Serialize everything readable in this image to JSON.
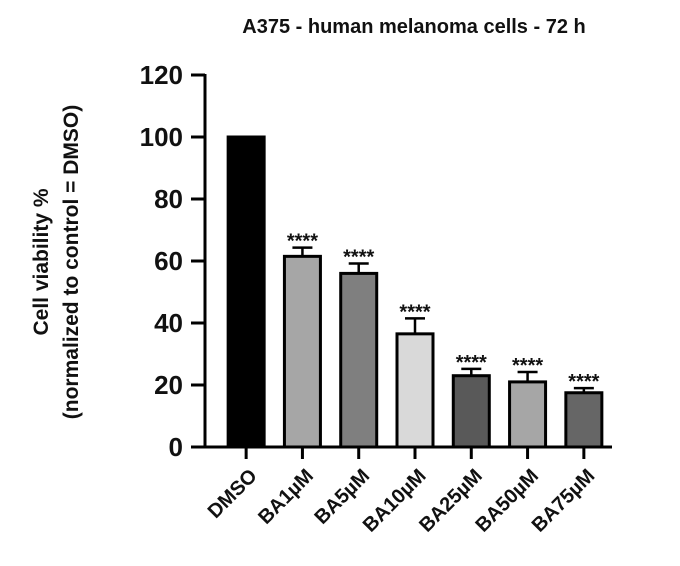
{
  "chart_data": {
    "type": "bar",
    "title": "A375 - human melanoma cells - 72 h",
    "ylabel_line1": "Cell viability %",
    "ylabel_line2": "(normalized to control = DMSO)",
    "xlabel": "",
    "ylim": [
      0,
      120
    ],
    "yticks": [
      0,
      20,
      40,
      60,
      80,
      100,
      120
    ],
    "categories": [
      "DMSO",
      "BA1µM",
      "BA5µM",
      "BA10µM",
      "BA25µM",
      "BA50µM",
      "BA75µM"
    ],
    "values": [
      100,
      61.5,
      56,
      36.5,
      23,
      21,
      17.5
    ],
    "error": [
      0,
      2.8,
      3.2,
      5,
      2.2,
      3.2,
      1.5
    ],
    "significance": [
      "",
      "****",
      "****",
      "****",
      "****",
      "****",
      "****"
    ],
    "bar_colors": [
      "#000000",
      "#a6a6a6",
      "#7f7f7f",
      "#d9d9d9",
      "#595959",
      "#a6a6a6",
      "#666666"
    ],
    "grid": false,
    "legend": "none"
  }
}
